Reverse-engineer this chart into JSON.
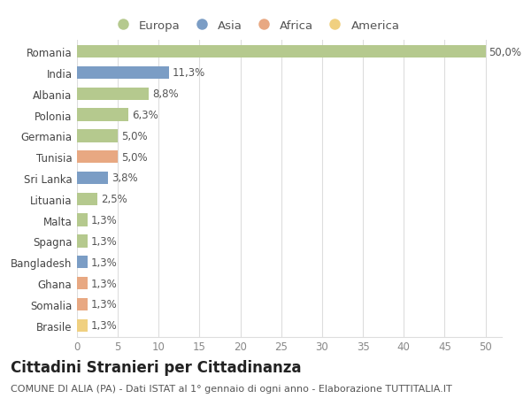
{
  "countries": [
    "Romania",
    "India",
    "Albania",
    "Polonia",
    "Germania",
    "Tunisia",
    "Sri Lanka",
    "Lituania",
    "Malta",
    "Spagna",
    "Bangladesh",
    "Ghana",
    "Somalia",
    "Brasile"
  ],
  "values": [
    50.0,
    11.3,
    8.8,
    6.3,
    5.0,
    5.0,
    3.8,
    2.5,
    1.3,
    1.3,
    1.3,
    1.3,
    1.3,
    1.3
  ],
  "labels": [
    "50,0%",
    "11,3%",
    "8,8%",
    "6,3%",
    "5,0%",
    "5,0%",
    "3,8%",
    "2,5%",
    "1,3%",
    "1,3%",
    "1,3%",
    "1,3%",
    "1,3%",
    "1,3%"
  ],
  "continents": [
    "Europa",
    "Asia",
    "Europa",
    "Europa",
    "Europa",
    "Africa",
    "Asia",
    "Europa",
    "Europa",
    "Europa",
    "Asia",
    "Africa",
    "Africa",
    "America"
  ],
  "colors": {
    "Europa": "#b5c98e",
    "Asia": "#7b9dc5",
    "Africa": "#e8a882",
    "America": "#f0d080"
  },
  "title": "Cittadini Stranieri per Cittadinanza",
  "subtitle": "COMUNE DI ALIA (PA) - Dati ISTAT al 1° gennaio di ogni anno - Elaborazione TUTTITALIA.IT",
  "xlim": [
    0,
    52
  ],
  "xticks": [
    0,
    5,
    10,
    15,
    20,
    25,
    30,
    35,
    40,
    45,
    50
  ],
  "background_color": "#ffffff",
  "grid_color": "#dddddd",
  "bar_height": 0.6,
  "title_fontsize": 12,
  "subtitle_fontsize": 8,
  "label_fontsize": 8.5,
  "tick_fontsize": 8.5,
  "legend_fontsize": 9.5,
  "legend_order": [
    "Europa",
    "Asia",
    "Africa",
    "America"
  ]
}
